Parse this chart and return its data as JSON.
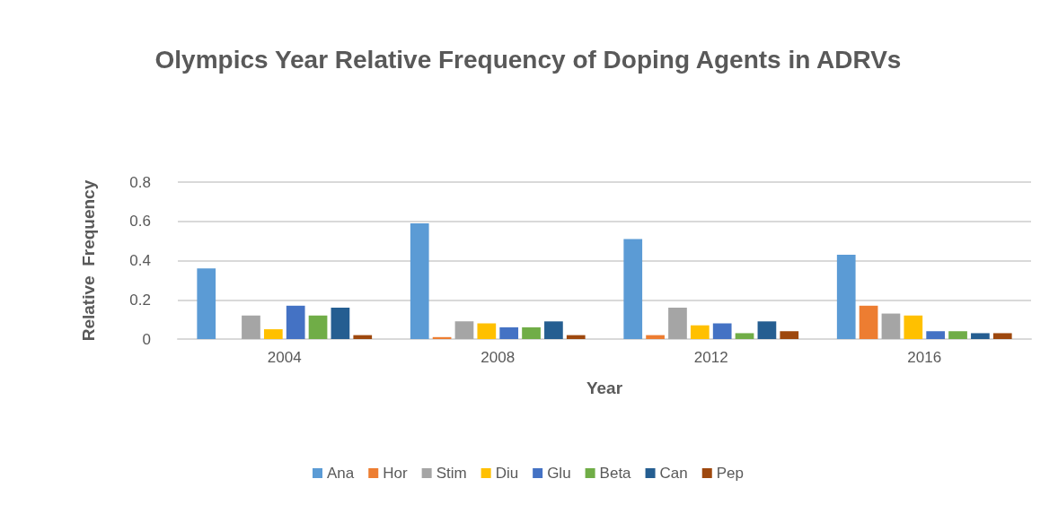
{
  "chart_data": {
    "type": "bar",
    "title": "Olympics Year Relative Frequency of Doping Agents in ADRVs",
    "xlabel": "Year",
    "ylabel": "Relative  Frequency",
    "categories": [
      "2004",
      "2008",
      "2012",
      "2016"
    ],
    "series": [
      {
        "name": "Ana",
        "color": "#5b9bd5",
        "values": [
          0.36,
          0.59,
          0.51,
          0.43
        ]
      },
      {
        "name": "Hor",
        "color": "#ed7d31",
        "values": [
          null,
          0.01,
          0.02,
          0.17
        ]
      },
      {
        "name": "Stim",
        "color": "#a5a5a5",
        "values": [
          0.12,
          0.09,
          0.16,
          0.13
        ]
      },
      {
        "name": "Diu",
        "color": "#ffc000",
        "values": [
          0.05,
          0.08,
          0.07,
          0.12
        ]
      },
      {
        "name": "Glu",
        "color": "#4472c4",
        "values": [
          0.17,
          0.06,
          0.08,
          0.04
        ]
      },
      {
        "name": "Beta",
        "color": "#70ad47",
        "values": [
          0.12,
          0.06,
          0.03,
          0.04
        ]
      },
      {
        "name": "Can",
        "color": "#255e91",
        "values": [
          0.16,
          0.09,
          0.09,
          0.03
        ]
      },
      {
        "name": "Pep",
        "color": "#9e480e",
        "values": [
          0.02,
          0.02,
          0.04,
          0.03
        ]
      }
    ],
    "ylim": [
      0,
      0.8
    ],
    "yticks": [
      0,
      0.2,
      0.4,
      0.6,
      0.8
    ],
    "grid": "y",
    "legend": "bottom"
  }
}
